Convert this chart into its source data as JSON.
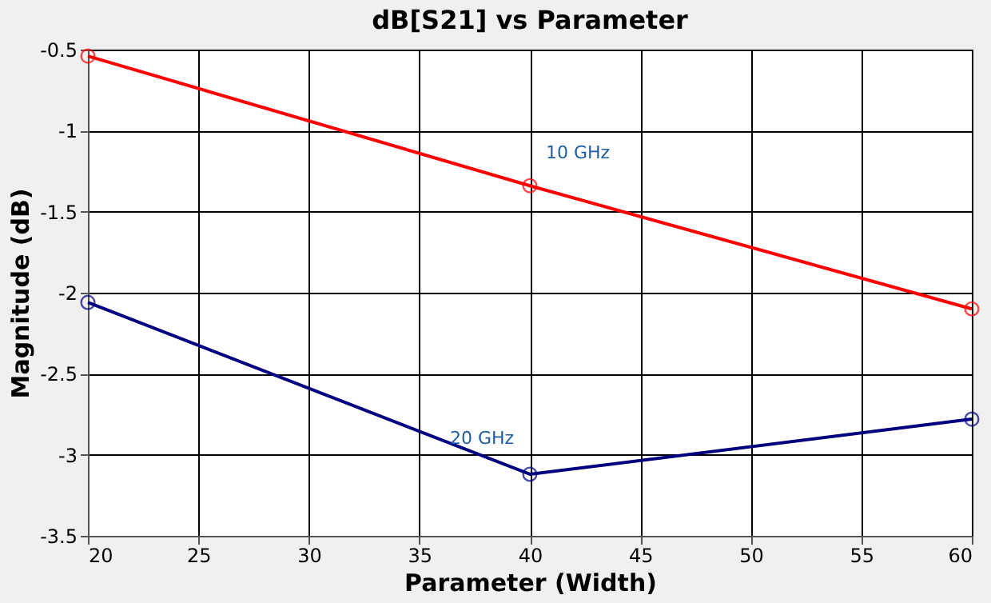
{
  "chart_data": {
    "type": "line",
    "title": "dB[S21] vs Parameter",
    "xlabel": "Parameter (Width)",
    "ylabel": "Magnitude (dB)",
    "x": [
      20,
      40,
      60
    ],
    "series": [
      {
        "color": "#ff0000",
        "values": [
          -0.54,
          -1.34,
          -2.1
        ]
      },
      {
        "color": "#000080",
        "values": [
          -2.06,
          -3.12,
          -2.78
        ]
      }
    ],
    "annotations": [
      {
        "text": "10 GHz",
        "x": 40,
        "y": -1.34
      },
      {
        "text": "20 GHz",
        "x": 40,
        "y": -3.12
      }
    ],
    "xlim": [
      20,
      60
    ],
    "xticks": [
      20,
      25,
      30,
      35,
      40,
      45,
      50,
      55,
      60
    ],
    "ylim": [
      -3.5,
      -0.5
    ],
    "yticks": [
      -3.5,
      -3,
      -2.5,
      -2,
      -1.5,
      -1,
      -0.5
    ],
    "grid": true,
    "marker": "circle",
    "line_style": "solid"
  }
}
